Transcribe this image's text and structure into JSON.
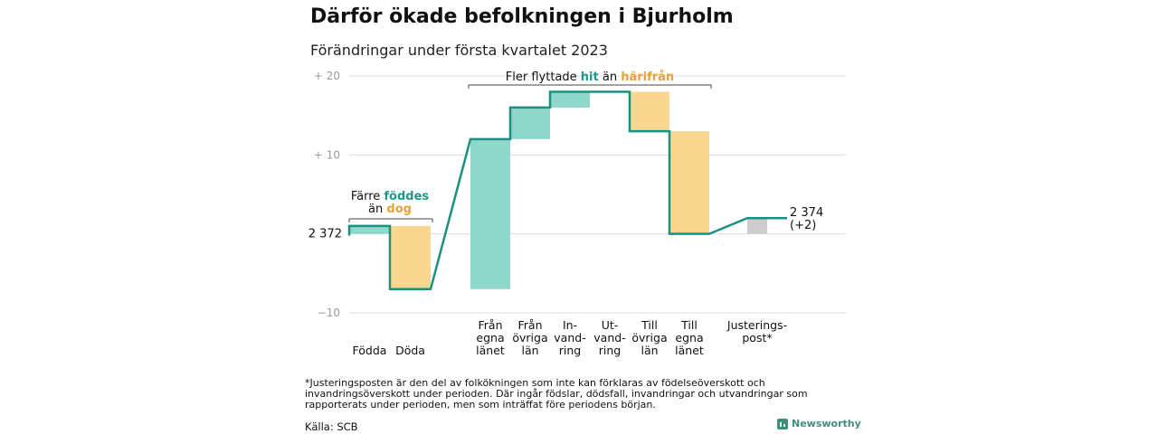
{
  "title": "Därför ökade befolkningen i Bjurholm",
  "subtitle": "Förändringar under första kvartalet 2023",
  "colors": {
    "increase": "#8fd6cb",
    "decrease": "#fad791",
    "adjustment": "#cccccc",
    "line": "#1a9080",
    "teal_text": "#1a9a8a",
    "orange_text": "#e6a23a",
    "grid": "#dddddd",
    "axis_text": "#9a9a9a"
  },
  "chart_data": {
    "type": "waterfall",
    "y_unit": "change from start",
    "ylim": [
      -10,
      20
    ],
    "yticks": [
      {
        "value": 20,
        "label": "+ 20"
      },
      {
        "value": 10,
        "label": "+ 10"
      },
      {
        "value": -10,
        "label": "−10"
      }
    ],
    "start_label": "2 372",
    "start_value": 0,
    "end_label": "2 374",
    "end_change_label": "(+2)",
    "end_value": 2,
    "steps": [
      {
        "label_lines": [
          "Födda"
        ],
        "value": 1,
        "kind": "increase"
      },
      {
        "label_lines": [
          "Döda"
        ],
        "value": -8,
        "kind": "decrease"
      },
      {
        "label_lines": [
          "Från",
          "egna",
          "länet"
        ],
        "value": 19,
        "kind": "increase"
      },
      {
        "label_lines": [
          "Från",
          "övriga",
          "län"
        ],
        "value": 4,
        "kind": "increase"
      },
      {
        "label_lines": [
          "In-",
          "vand-",
          "ring"
        ],
        "value": 2,
        "kind": "increase"
      },
      {
        "label_lines": [
          "Ut-",
          "vand-",
          "ring"
        ],
        "value": 0,
        "kind": "increase"
      },
      {
        "label_lines": [
          "Till",
          "övriga",
          "län"
        ],
        "value": -5,
        "kind": "decrease"
      },
      {
        "label_lines": [
          "Till",
          "egna",
          "länet"
        ],
        "value": -13,
        "kind": "decrease"
      },
      {
        "label_lines": [
          "Justerings-",
          "post*"
        ],
        "value": 2,
        "kind": "adjustment"
      }
    ],
    "annotations": {
      "births": {
        "line1_pre": "Färre ",
        "line1_hl": "föddes",
        "line2_pre": "än ",
        "line2_hl": "dog"
      },
      "migration": {
        "pre": "Fler flyttade ",
        "hl1": "hit",
        "mid": " än ",
        "hl2": "härifrån"
      }
    }
  },
  "footnote": "*Justeringsposten är den del av folkökningen som inte kan förklaras av födelseöverskott och invandringsöverskott under perioden. Där ingår födslar, dödsfall, invandringar och utvandringar som rapporterats under perioden, men som inträffat före periodens början.",
  "source": "Källa: SCB",
  "brand": "Newsworthy"
}
